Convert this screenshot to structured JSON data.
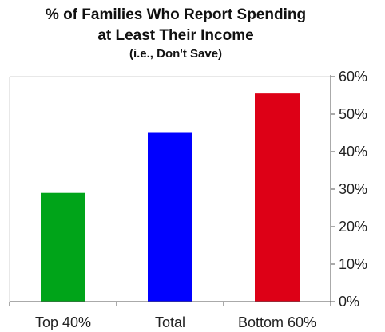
{
  "chart_data": {
    "type": "bar",
    "title": "% of Families Who Report Spending at Least Their Income",
    "title_lines": [
      "% of Families Who Report Spending",
      "at Least Their Income"
    ],
    "subtitle": "(i.e., Don't Save)",
    "categories": [
      "Top 40%",
      "Total",
      "Bottom 60%"
    ],
    "values": [
      29,
      45,
      55.5
    ],
    "bar_colors": [
      "#00a419",
      "#0000ff",
      "#dd0016"
    ],
    "ylim": [
      0,
      60
    ],
    "yticks": [
      0,
      10,
      20,
      30,
      40,
      50,
      60
    ],
    "ytick_labels": [
      "0%",
      "10%",
      "20%",
      "30%",
      "40%",
      "50%",
      "60%"
    ],
    "y_axis_side": "right",
    "grid": false,
    "legend": "none",
    "xlabel": "",
    "ylabel": ""
  }
}
